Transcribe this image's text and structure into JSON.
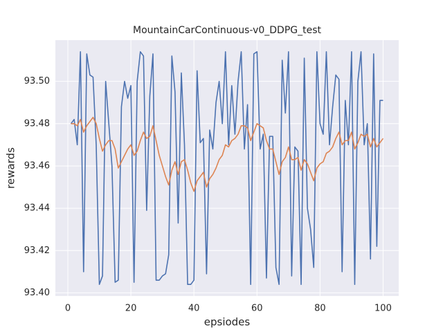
{
  "chart_data": {
    "type": "line",
    "title": "MountainCarContinuous-v0_DDPG_test",
    "x_label": "epsiodes",
    "y_label": "rewards",
    "x": [
      1,
      2,
      3,
      4,
      5,
      6,
      7,
      8,
      9,
      10,
      11,
      12,
      13,
      14,
      15,
      16,
      17,
      18,
      19,
      20,
      21,
      22,
      23,
      24,
      25,
      26,
      27,
      28,
      29,
      30,
      31,
      32,
      33,
      34,
      35,
      36,
      37,
      38,
      39,
      40,
      41,
      42,
      43,
      44,
      45,
      46,
      47,
      48,
      49,
      50,
      51,
      52,
      53,
      54,
      55,
      56,
      57,
      58,
      59,
      60,
      61,
      62,
      63,
      64,
      65,
      66,
      67,
      68,
      69,
      70,
      71,
      72,
      73,
      74,
      75,
      76,
      77,
      78,
      79,
      80,
      81,
      82,
      83,
      84,
      85,
      86,
      87,
      88,
      89,
      90,
      91,
      92,
      93,
      94,
      95,
      96,
      97,
      98,
      99,
      100
    ],
    "series": [
      {
        "color": "#4c72b0",
        "values": [
          93.48,
          93.482,
          93.47,
          93.514,
          93.41,
          93.513,
          93.503,
          93.502,
          93.47,
          93.404,
          93.408,
          93.5,
          93.48,
          93.46,
          93.405,
          93.406,
          93.488,
          93.5,
          93.492,
          93.498,
          93.405,
          93.5,
          93.514,
          93.512,
          93.439,
          93.493,
          93.513,
          93.406,
          93.406,
          93.408,
          93.409,
          93.418,
          93.512,
          93.495,
          93.433,
          93.504,
          93.47,
          93.404,
          93.404,
          93.406,
          93.505,
          93.471,
          93.473,
          93.409,
          93.477,
          93.468,
          93.49,
          93.5,
          93.48,
          93.514,
          93.47,
          93.498,
          93.475,
          93.5,
          93.514,
          93.468,
          93.489,
          93.404,
          93.513,
          93.514,
          93.468,
          93.475,
          93.407,
          93.474,
          93.474,
          93.412,
          93.404,
          93.51,
          93.485,
          93.514,
          93.408,
          93.469,
          93.467,
          93.404,
          93.511,
          93.44,
          93.43,
          93.412,
          93.514,
          93.48,
          93.475,
          93.514,
          93.47,
          93.488,
          93.503,
          93.501,
          93.41,
          93.491,
          93.47,
          93.514,
          93.404,
          93.5,
          93.514,
          93.47,
          93.48,
          93.416,
          93.513,
          93.422,
          93.491,
          93.491
        ]
      },
      {
        "color": "#dd8452",
        "values": [
          93.48,
          93.48,
          93.479,
          93.482,
          93.476,
          93.479,
          93.481,
          93.483,
          93.48,
          93.473,
          93.467,
          93.47,
          93.472,
          93.472,
          93.468,
          93.459,
          93.462,
          93.465,
          93.468,
          93.47,
          93.465,
          93.467,
          93.472,
          93.476,
          93.473,
          93.474,
          93.479,
          93.472,
          93.465,
          93.46,
          93.455,
          93.451,
          93.458,
          93.462,
          93.456,
          93.462,
          93.463,
          93.458,
          93.452,
          93.448,
          93.453,
          93.455,
          93.457,
          93.45,
          93.454,
          93.456,
          93.459,
          93.463,
          93.465,
          93.47,
          93.469,
          93.472,
          93.473,
          93.475,
          93.479,
          93.479,
          93.478,
          93.472,
          93.476,
          93.48,
          93.479,
          93.478,
          93.472,
          93.468,
          93.468,
          93.462,
          93.456,
          93.462,
          93.464,
          93.469,
          93.463,
          93.463,
          93.464,
          93.458,
          93.463,
          93.461,
          93.457,
          93.453,
          93.459,
          93.461,
          93.462,
          93.466,
          93.467,
          93.469,
          93.473,
          93.476,
          93.47,
          93.472,
          93.472,
          93.476,
          93.468,
          93.471,
          93.475,
          93.474,
          93.475,
          93.469,
          93.473,
          93.469,
          93.471,
          93.473
        ]
      }
    ],
    "xlim": [
      -3.95,
      104.95
    ],
    "ylim": [
      93.3985,
      93.5195
    ],
    "xticks": [
      0,
      20,
      40,
      60,
      80,
      100
    ],
    "yticks": [
      {
        "value": 93.4,
        "label": "93.40"
      },
      93.42,
      93.44,
      93.46,
      93.48,
      {
        "value": 93.5,
        "label": "93.50"
      }
    ],
    "grid": true
  }
}
